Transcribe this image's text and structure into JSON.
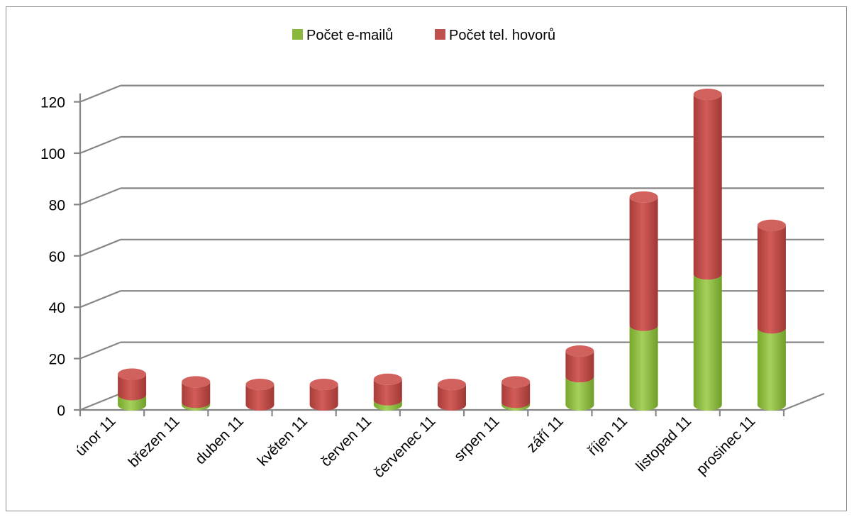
{
  "chart_data": {
    "type": "bar",
    "stacked": true,
    "style": "3d-cylinder",
    "title": "",
    "xlabel": "",
    "ylabel": "",
    "ylim": [
      0,
      120
    ],
    "yticks": [
      "0",
      "20",
      "40",
      "60",
      "80",
      "100",
      "120"
    ],
    "grid": true,
    "legend_position": "top",
    "categories": [
      "únor 11",
      "březen 11",
      "duben 11",
      "květen 11",
      "červen 11",
      "červenec 11",
      "srpen 11",
      "září 11",
      "říjen 11",
      "listopad 11",
      "prosinec 11"
    ],
    "series": [
      {
        "name": "Počet e-mailů",
        "color": "#8ab83c",
        "values": [
          4,
          1,
          0,
          0,
          2,
          0,
          1,
          11,
          31,
          51,
          30
        ]
      },
      {
        "name": "Počet tel. hovorů",
        "color": "#c0504d",
        "values": [
          8,
          8,
          8,
          8,
          8,
          8,
          8,
          10,
          50,
          70,
          40
        ]
      }
    ]
  }
}
